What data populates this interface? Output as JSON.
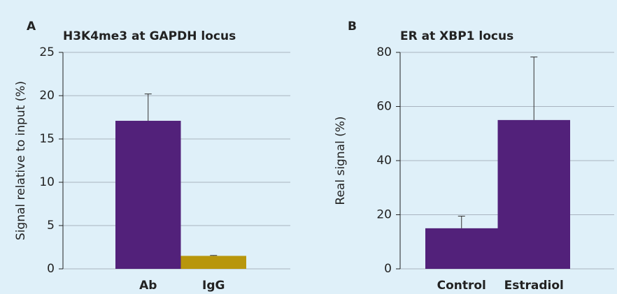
{
  "chart_data": [
    {
      "type": "bar",
      "panel": "A",
      "title": "H3K4me3 at GAPDH locus",
      "y_label": "Signal relative to input (%)",
      "categories": [
        "Ab",
        "IgG"
      ],
      "values": [
        17.1,
        1.5
      ],
      "errors": [
        3.1,
        0.05
      ],
      "colors": [
        "#52217a",
        "#b8960c"
      ],
      "ylim": [
        0,
        25
      ],
      "yticks": [
        0,
        5,
        10,
        15,
        20,
        25
      ],
      "grid": true
    },
    {
      "type": "bar",
      "panel": "B",
      "title": "ER at XBP1 locus",
      "y_label": "Real signal (%)",
      "categories": [
        "Control",
        "Estradiol"
      ],
      "values": [
        15,
        55
      ],
      "errors": [
        4.5,
        23.3
      ],
      "colors": [
        "#52217a",
        "#52217a"
      ],
      "ylim": [
        0,
        80
      ],
      "yticks": [
        0,
        20,
        40,
        60,
        80
      ],
      "grid": true
    }
  ]
}
